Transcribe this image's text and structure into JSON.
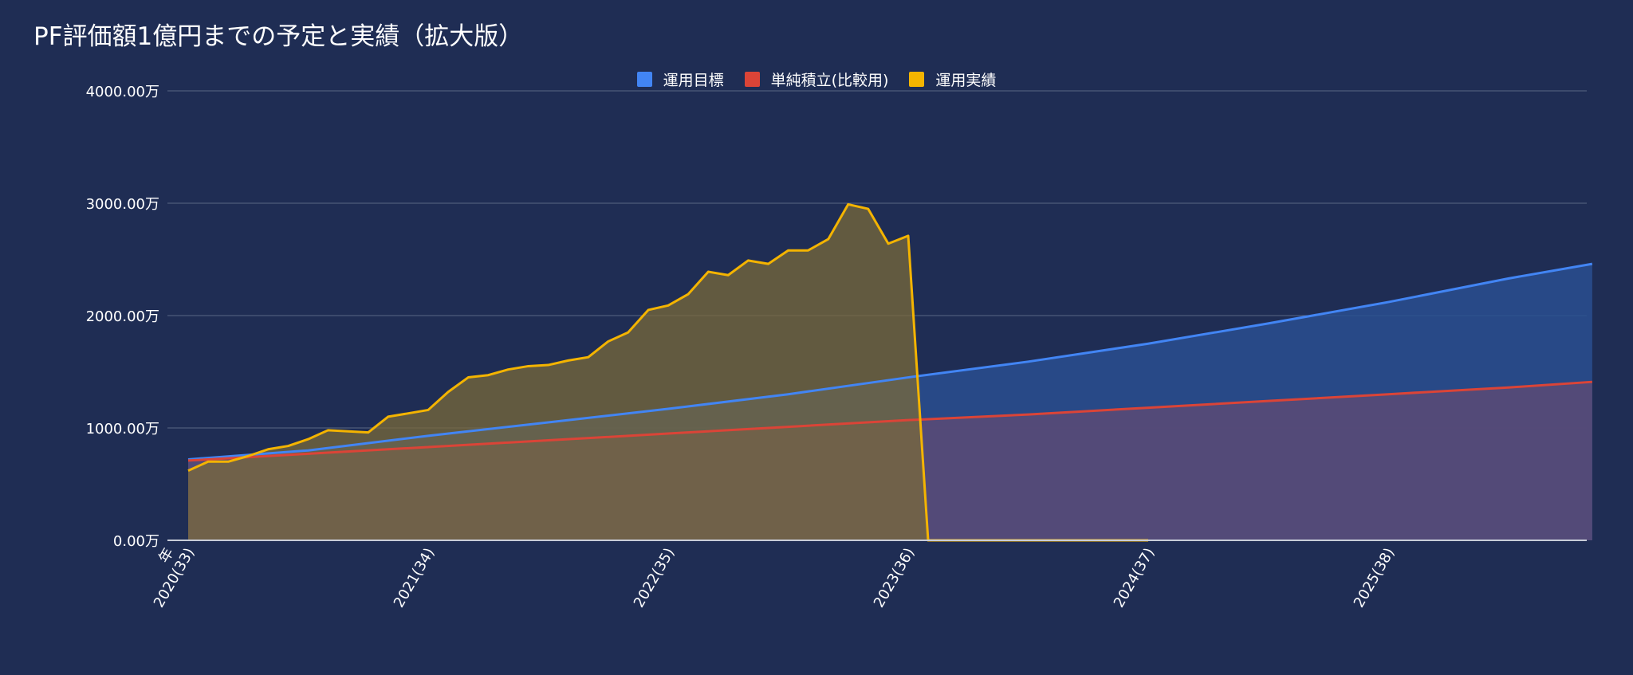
{
  "chart_data": {
    "type": "area",
    "title": "PF評価額1億円までの予定と実績（拡大版）",
    "xlabel": "年",
    "ylabel": "",
    "ylim": [
      0,
      4000
    ],
    "y_ticks": [
      "0.00万",
      "1000.00万",
      "2000.00万",
      "3000.00万",
      "4000.00万"
    ],
    "y_tick_values": [
      0,
      1000,
      2000,
      3000,
      4000
    ],
    "x_tick_labels": [
      "2020(33)",
      "2021(34)",
      "2022(35)",
      "2023(36)",
      "2024(37)",
      "2025(38)"
    ],
    "x_range_years": [
      0,
      5.85
    ],
    "grid": true,
    "legend_position": "top",
    "colors": {
      "background": "#1f2d54",
      "grid": "#5a6685",
      "axis": "#c8cdd8"
    },
    "series": [
      {
        "name": "運用目標",
        "color": "#4285f4",
        "fill": "#2a4f91",
        "x": [
          0,
          0.5,
          1,
          1.5,
          2,
          2.5,
          3,
          3.5,
          4,
          4.5,
          5,
          5.5,
          5.85
        ],
        "values": [
          720,
          800,
          930,
          1050,
          1170,
          1300,
          1450,
          1590,
          1750,
          1930,
          2120,
          2330,
          2460
        ]
      },
      {
        "name": "単純積立(比較用)",
        "color": "#db4437",
        "fill": "#5a4a75",
        "x": [
          0,
          0.5,
          1,
          1.5,
          2,
          2.5,
          3,
          3.5,
          4,
          4.5,
          5,
          5.5,
          5.85
        ],
        "values": [
          710,
          770,
          830,
          890,
          950,
          1010,
          1070,
          1120,
          1180,
          1240,
          1300,
          1360,
          1410
        ]
      },
      {
        "name": "運用実績",
        "color": "#f4b400",
        "fill": "#7a6a3a",
        "x": [
          0,
          0.083,
          0.167,
          0.25,
          0.333,
          0.417,
          0.5,
          0.583,
          0.667,
          0.75,
          0.833,
          0.917,
          1.0,
          1.083,
          1.167,
          1.25,
          1.333,
          1.417,
          1.5,
          1.583,
          1.667,
          1.75,
          1.833,
          1.917,
          2.0,
          2.083,
          2.167,
          2.25,
          2.333,
          2.417,
          2.5,
          2.583,
          2.667,
          2.75,
          2.833,
          2.917,
          3.0,
          3.083,
          3.167,
          3.25,
          3.333,
          3.417,
          3.5,
          3.583,
          3.667,
          3.75,
          3.833,
          3.917,
          4.0
        ],
        "values": [
          620,
          700,
          700,
          750,
          810,
          840,
          900,
          980,
          970,
          960,
          1100,
          1130,
          1160,
          1320,
          1450,
          1470,
          1520,
          1550,
          1560,
          1600,
          1630,
          1770,
          1850,
          2050,
          2090,
          2190,
          2390,
          2360,
          2490,
          2460,
          2580,
          2580,
          2680,
          2990,
          2950,
          2640,
          2710,
          0,
          0,
          0,
          0,
          0,
          0,
          0,
          0,
          0,
          0,
          0,
          0
        ]
      }
    ]
  }
}
